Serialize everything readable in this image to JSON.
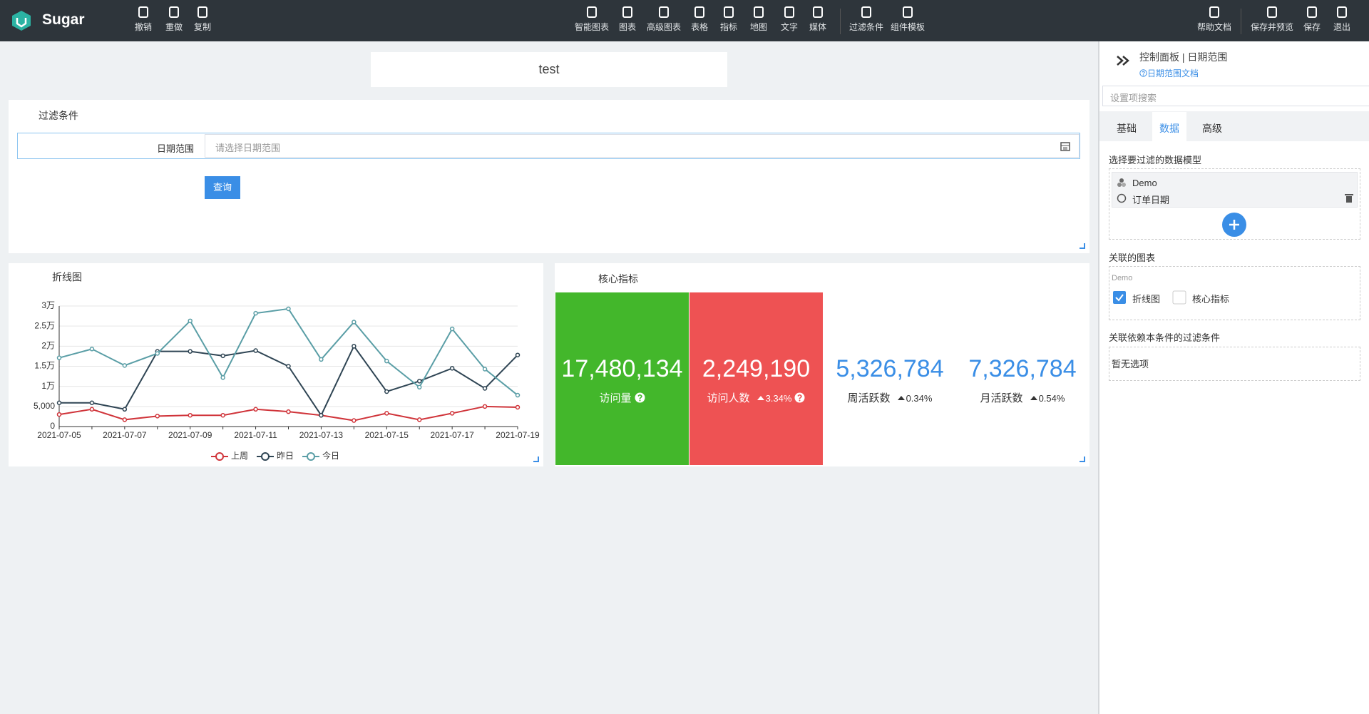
{
  "header": {
    "brand": "Sugar",
    "tools": [
      "撤销",
      "重做",
      "复制"
    ],
    "widgets": [
      "智能图表",
      "图表",
      "高级图表",
      "表格",
      "指标",
      "地图",
      "文字",
      "媒体"
    ],
    "filters": [
      "过滤条件",
      "组件模板"
    ],
    "help": "帮助文档",
    "actions": [
      "保存并预览",
      "保存",
      "退出"
    ]
  },
  "canvas": {
    "title": "test",
    "filter": {
      "title": "过滤条件",
      "label": "日期范围",
      "placeholder": "请选择日期范围",
      "button": "查询"
    }
  },
  "chart_data": {
    "type": "line",
    "title": "折线图",
    "categories": [
      "2021-07-05",
      null,
      "2021-07-07",
      null,
      "2021-07-09",
      null,
      "2021-07-11",
      null,
      "2021-07-13",
      null,
      "2021-07-15",
      null,
      "2021-07-17",
      null,
      "2021-07-19"
    ],
    "series": [
      {
        "name": "上周",
        "color": "#d0343a",
        "values": [
          3000,
          4300,
          1700,
          2600,
          2800,
          2800,
          4300,
          3700,
          2800,
          1500,
          3300,
          1700,
          3300,
          5000,
          4800
        ]
      },
      {
        "name": "昨日",
        "color": "#2f4554",
        "values": [
          5900,
          5900,
          4300,
          18700,
          18700,
          17600,
          18900,
          15000,
          2800,
          20000,
          8700,
          11300,
          14500,
          9500,
          17800
        ]
      },
      {
        "name": "今日",
        "color": "#5a9ea6",
        "values": [
          17100,
          19300,
          15200,
          18200,
          26300,
          12200,
          28200,
          29300,
          16700,
          26000,
          16300,
          9800,
          24300,
          14300,
          7800
        ]
      }
    ],
    "ylim": [
      0,
      30000
    ],
    "yticks": [
      0,
      {
        "value": 5000,
        "label": "5,000"
      },
      {
        "value": 10000,
        "label": "1万"
      },
      {
        "value": 15000,
        "label": "1.5万"
      },
      {
        "value": 20000,
        "label": "2万"
      },
      {
        "value": 25000,
        "label": "2.5万"
      },
      {
        "value": 30000,
        "label": "3万"
      }
    ],
    "grid": true
  },
  "kpi": {
    "title": "核心指标",
    "cards": [
      {
        "value": "17,480,134",
        "label": "访问量"
      },
      {
        "value": "2,249,190",
        "label": "访问人数",
        "change": "3.34%"
      },
      {
        "value": "5,326,784",
        "label": "周活跃数",
        "change": "0.34%"
      },
      {
        "value": "7,326,784",
        "label": "月活跃数",
        "change": "0.54%"
      }
    ]
  },
  "panel": {
    "title": "控制面板 | 日期范围",
    "doc_link": "日期范围文档",
    "search": "设置项搜索",
    "tabs": [
      "基础",
      "数据",
      "高级"
    ],
    "model_heading": "选择要过滤的数据模型",
    "model": "Demo",
    "field": "订单日期",
    "charts_heading": "关联的图表",
    "charts_group": "Demo",
    "charts": [
      "折线图",
      "核心指标"
    ],
    "deps_heading": "关联依赖本条件的过滤条件",
    "deps_empty": "暂无选项"
  }
}
